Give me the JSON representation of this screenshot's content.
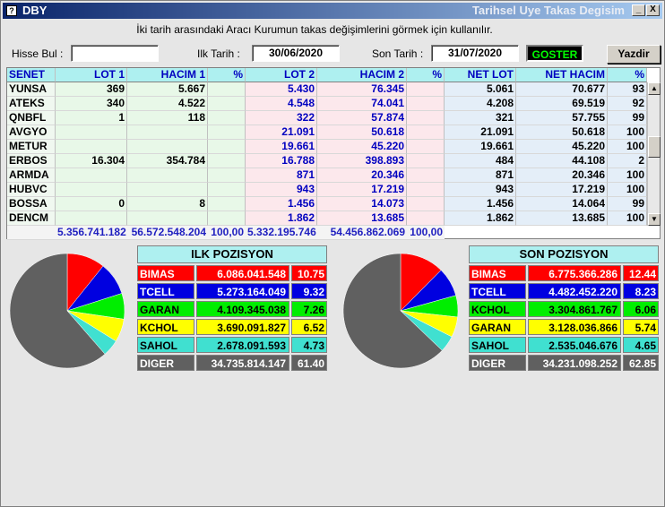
{
  "window": {
    "title": "DBY",
    "title_right": "Tarihsel Uye Takas Degisim",
    "min_label": "_",
    "close_label": "X"
  },
  "info_text": "İki tarih arasındaki  Aracı Kurumun takas değişimlerini görmek için kullanılır.",
  "filters": {
    "hisse_label": "Hisse Bul :",
    "hisse_value": "",
    "ilk_label": "Ilk Tarih :",
    "ilk_value": "30/06/2020",
    "son_label": "Son Tarih :",
    "son_value": "31/07/2020",
    "goster_label": "GOSTER",
    "yazdir_label": "Yazdir"
  },
  "grid": {
    "headers": [
      "SENET",
      "LOT 1",
      "HACIM 1",
      "%",
      "LOT 2",
      "HACIM 2",
      "%",
      "NET LOT",
      "NET HACIM",
      "%"
    ],
    "rows": [
      [
        "YUNSA",
        "369",
        "5.667",
        "",
        "5.430",
        "76.345",
        "",
        "5.061",
        "70.677",
        "93"
      ],
      [
        "ATEKS",
        "340",
        "4.522",
        "",
        "4.548",
        "74.041",
        "",
        "4.208",
        "69.519",
        "92"
      ],
      [
        "QNBFL",
        "1",
        "118",
        "",
        "322",
        "57.874",
        "",
        "321",
        "57.755",
        "99"
      ],
      [
        "AVGYO",
        "",
        "",
        "",
        "21.091",
        "50.618",
        "",
        "21.091",
        "50.618",
        "100"
      ],
      [
        "METUR",
        "",
        "",
        "",
        "19.661",
        "45.220",
        "",
        "19.661",
        "45.220",
        "100"
      ],
      [
        "ERBOS",
        "16.304",
        "354.784",
        "",
        "16.788",
        "398.893",
        "",
        "484",
        "44.108",
        "2"
      ],
      [
        "ARMDA",
        "",
        "",
        "",
        "871",
        "20.346",
        "",
        "871",
        "20.346",
        "100"
      ],
      [
        "HUBVC",
        "",
        "",
        "",
        "943",
        "17.219",
        "",
        "943",
        "17.219",
        "100"
      ],
      [
        "BOSSA",
        "0",
        "8",
        "",
        "1.456",
        "14.073",
        "",
        "1.456",
        "14.064",
        "99"
      ],
      [
        "DENCM",
        "",
        "",
        "",
        "1.862",
        "13.685",
        "",
        "1.862",
        "13.685",
        "100"
      ]
    ],
    "totals": [
      "5.356.741.182",
      "56.572.548.204",
      "100,00",
      "5.332.195.746",
      "54.456.862.069",
      "100,00"
    ]
  },
  "ilk_pozisyon": {
    "title": "ILK POZISYON",
    "rows": [
      {
        "name": "BIMAS",
        "value": "6.086.041.548",
        "pct": "10.75",
        "pct_num": 10.75,
        "bg": "#ff0000",
        "fg": "#ffffff"
      },
      {
        "name": "TCELL",
        "value": "5.273.164.049",
        "pct": "9.32",
        "pct_num": 9.32,
        "bg": "#0000e0",
        "fg": "#ffffff"
      },
      {
        "name": "GARAN",
        "value": "4.109.345.038",
        "pct": "7.26",
        "pct_num": 7.26,
        "bg": "#00ee00",
        "fg": "#000000"
      },
      {
        "name": "KCHOL",
        "value": "3.690.091.827",
        "pct": "6.52",
        "pct_num": 6.52,
        "bg": "#ffff00",
        "fg": "#000000"
      },
      {
        "name": "SAHOL",
        "value": "2.678.091.593",
        "pct": "4.73",
        "pct_num": 4.73,
        "bg": "#40e0d0",
        "fg": "#000000"
      },
      {
        "name": "DIGER",
        "value": "34.735.814.147",
        "pct": "61.40",
        "pct_num": 61.4,
        "bg": "#606060",
        "fg": "#ffffff"
      }
    ]
  },
  "son_pozisyon": {
    "title": "SON POZISYON",
    "rows": [
      {
        "name": "BIMAS",
        "value": "6.775.366.286",
        "pct": "12.44",
        "pct_num": 12.44,
        "bg": "#ff0000",
        "fg": "#ffffff"
      },
      {
        "name": "TCELL",
        "value": "4.482.452.220",
        "pct": "8.23",
        "pct_num": 8.23,
        "bg": "#0000e0",
        "fg": "#ffffff"
      },
      {
        "name": "KCHOL",
        "value": "3.304.861.767",
        "pct": "6.06",
        "pct_num": 6.06,
        "bg": "#00ee00",
        "fg": "#000000"
      },
      {
        "name": "GARAN",
        "value": "3.128.036.866",
        "pct": "5.74",
        "pct_num": 5.74,
        "bg": "#ffff00",
        "fg": "#000000"
      },
      {
        "name": "SAHOL",
        "value": "2.535.046.676",
        "pct": "4.65",
        "pct_num": 4.65,
        "bg": "#40e0d0",
        "fg": "#000000"
      },
      {
        "name": "DIGER",
        "value": "34.231.098.252",
        "pct": "62.85",
        "pct_num": 62.85,
        "bg": "#606060",
        "fg": "#ffffff"
      }
    ]
  }
}
